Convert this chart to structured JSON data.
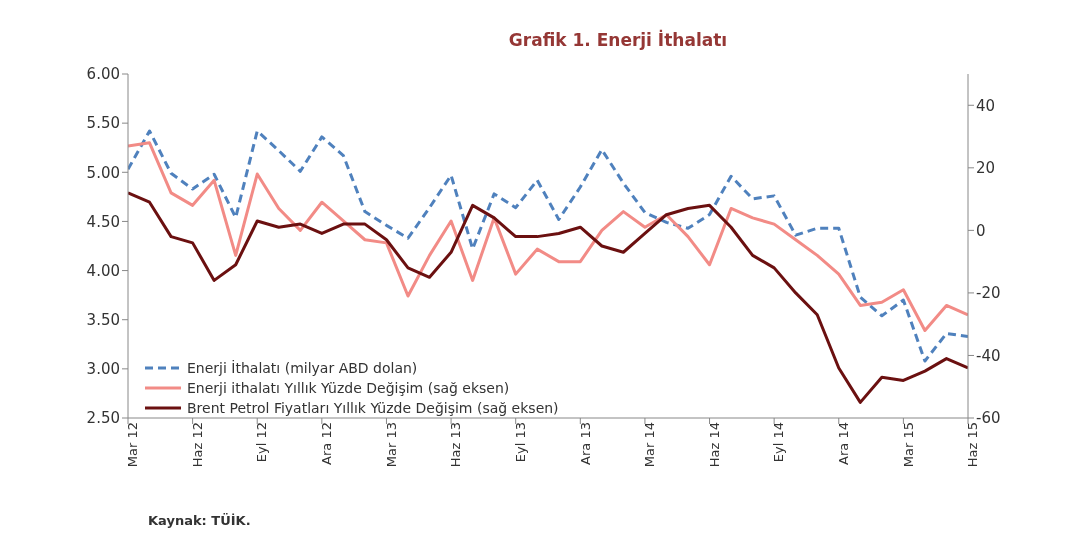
{
  "chart_data": {
    "type": "line",
    "title": "Grafik 1. Enerji İthalatı",
    "categories": [
      "Mar 12",
      null,
      null,
      "Haz 12",
      null,
      null,
      "Eyl 12",
      null,
      null,
      "Ara 12",
      null,
      null,
      "Mar 13",
      null,
      null,
      "Haz 13",
      null,
      null,
      "Eyl 13",
      null,
      null,
      "Ara 13",
      null,
      null,
      "Mar 14",
      null,
      null,
      "Haz 14",
      null,
      null,
      "Eyl 14",
      null,
      null,
      "Ara 14",
      null,
      null,
      "Mar 15",
      null,
      null,
      "Haz 15"
    ],
    "series": [
      {
        "name": "Enerji İthalatı (milyar ABD dolan)",
        "color": "#4f81bd",
        "line_style": "dashed",
        "values": [
          5.03,
          5.42,
          4.99,
          4.83,
          4.98,
          4.54,
          5.42,
          5.22,
          5.01,
          5.36,
          5.17,
          4.6,
          4.46,
          4.33,
          4.64,
          4.97,
          4.22,
          4.78,
          4.64,
          4.92,
          4.52,
          4.85,
          5.23,
          4.89,
          4.59,
          4.49,
          4.43,
          4.57,
          4.96,
          4.73,
          4.76,
          4.36,
          4.43,
          4.43,
          3.73,
          3.54,
          3.7,
          3.08,
          3.36,
          3.33
        ]
      },
      {
        "name": "Enerji ithalatı Yıllık Yüzde Değişim (sağ eksen)",
        "color": "#f28b86",
        "axis": "y2",
        "line_style": "solid",
        "values": [
          27,
          28,
          12,
          8,
          16,
          -8,
          18,
          7,
          0,
          9,
          3,
          -3,
          -4,
          -21,
          -8,
          3,
          -16,
          4,
          -14,
          -6,
          -10,
          -10,
          0,
          6,
          1,
          5,
          -2,
          -11,
          7,
          4,
          2,
          -3,
          -8,
          -14,
          -24,
          -23,
          -19,
          -32,
          -24,
          -27
        ]
      },
      {
        "name": "Brent Petrol Fiyatları Yıllık Yüzde Değişim (sağ eksen)",
        "color": "#6b1010",
        "axis": "y2",
        "line_style": "solid",
        "values": [
          12,
          9,
          -2,
          -4,
          -16,
          -11,
          3,
          1,
          2,
          -1,
          2,
          2,
          -3,
          -12,
          -15,
          -7,
          8,
          4,
          -2,
          -2,
          -1,
          1,
          -5,
          -7,
          -1,
          5,
          7,
          8,
          1,
          -8,
          -12,
          -20,
          -27,
          -44,
          -55,
          -47,
          -48,
          -45,
          -41,
          -44
        ]
      }
    ],
    "ylim": [
      2.5,
      6
    ],
    "yticks": [
      {
        "value": 2.5,
        "label": "2.50"
      },
      {
        "value": 3,
        "label": "3.00"
      },
      {
        "value": 3.5,
        "label": "3.50"
      },
      {
        "value": 4,
        "label": "4.00"
      },
      {
        "value": 4.5,
        "label": "4.50"
      },
      {
        "value": 5,
        "label": "5.00"
      },
      {
        "value": 5.5,
        "label": "5.50"
      },
      {
        "value": 6,
        "label": "6.00"
      }
    ],
    "y2lim": [
      -60,
      50
    ],
    "y2ticks": [
      -60,
      -40,
      -20,
      0,
      20,
      40
    ],
    "legend": "bottom left",
    "marker": "none",
    "annotations": [
      "Kaynak: TÜİK."
    ]
  }
}
